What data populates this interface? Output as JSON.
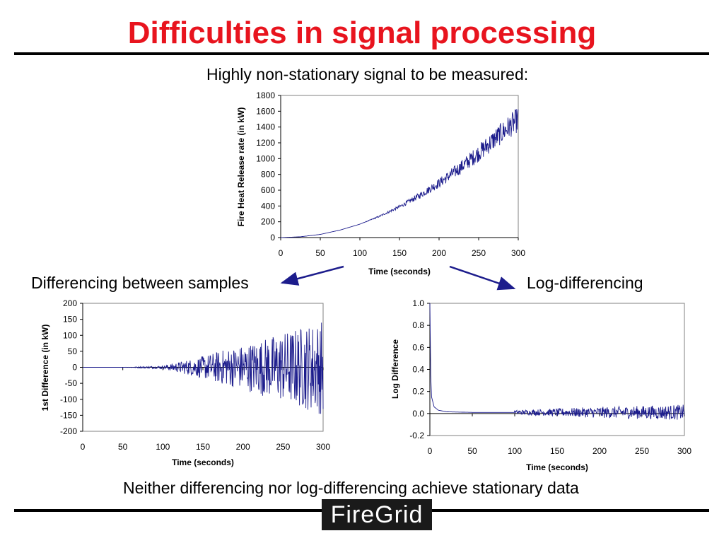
{
  "title": "Difficulties in signal processing",
  "captions": {
    "top": "Highly non-stationary signal to be measured:",
    "left": "Differencing between samples",
    "right": "Log-differencing",
    "bottom": "Neither differencing nor log-differencing achieve stationary data"
  },
  "logo_text": "FireGrid",
  "colors": {
    "title": "#e8141e",
    "series": "#1c1c8c",
    "arrow": "#1c1c8c"
  },
  "chart_data": [
    {
      "type": "line",
      "xlabel": "Time (seconds)",
      "ylabel": "Fire Heat Release rate (in kW)",
      "xlim": [
        0,
        300
      ],
      "ylim": [
        0,
        1800
      ],
      "xticks": [
        0,
        50,
        100,
        150,
        200,
        250,
        300
      ],
      "yticks": [
        0,
        200,
        400,
        600,
        800,
        1000,
        1200,
        1400,
        1600,
        1800
      ],
      "grid": false,
      "x": [
        0,
        25,
        50,
        75,
        100,
        125,
        150,
        175,
        200,
        225,
        250,
        275,
        300
      ],
      "y": [
        0,
        10,
        40,
        95,
        170,
        270,
        390,
        530,
        690,
        870,
        1070,
        1290,
        1500
      ],
      "noise_note_values": [
        [
          0,
          0
        ],
        [
          100,
          0
        ],
        [
          150,
          20
        ],
        [
          200,
          60
        ],
        [
          250,
          110
        ],
        [
          300,
          160
        ]
      ]
    },
    {
      "type": "line",
      "xlabel": "Time (seconds)",
      "ylabel": "1st Difference (in kW)",
      "xlim": [
        0,
        300
      ],
      "ylim": [
        -200,
        200
      ],
      "xticks": [
        0,
        50,
        100,
        150,
        200,
        250,
        300
      ],
      "yticks": [
        -200,
        -150,
        -100,
        -50,
        0,
        50,
        100,
        150,
        200
      ],
      "grid": false,
      "x": [
        0,
        50,
        100,
        125,
        150,
        175,
        200,
        225,
        250,
        275,
        300
      ],
      "amplitude": [
        0,
        0,
        5,
        20,
        35,
        55,
        70,
        90,
        110,
        130,
        150
      ]
    },
    {
      "type": "line",
      "xlabel": "Time (seconds)",
      "ylabel": "Log Difference",
      "xlim": [
        0,
        300
      ],
      "ylim": [
        -0.2,
        1.0
      ],
      "xticks": [
        0,
        50,
        100,
        150,
        200,
        250,
        300
      ],
      "yticks": [
        "-0.2",
        "0.0",
        "0.2",
        "0.4",
        "0.6",
        "0.8",
        "1.0"
      ],
      "grid": false,
      "x": [
        0,
        1,
        2,
        5,
        10,
        20,
        50,
        100,
        150,
        200,
        250,
        300
      ],
      "y": [
        1.0,
        0.35,
        0.15,
        0.06,
        0.03,
        0.015,
        0.01,
        0.01,
        0.01,
        0.01,
        0.01,
        0.01
      ],
      "amplitude_after_100": [
        [
          100,
          0.02
        ],
        [
          200,
          0.05
        ],
        [
          300,
          0.07
        ]
      ]
    }
  ]
}
